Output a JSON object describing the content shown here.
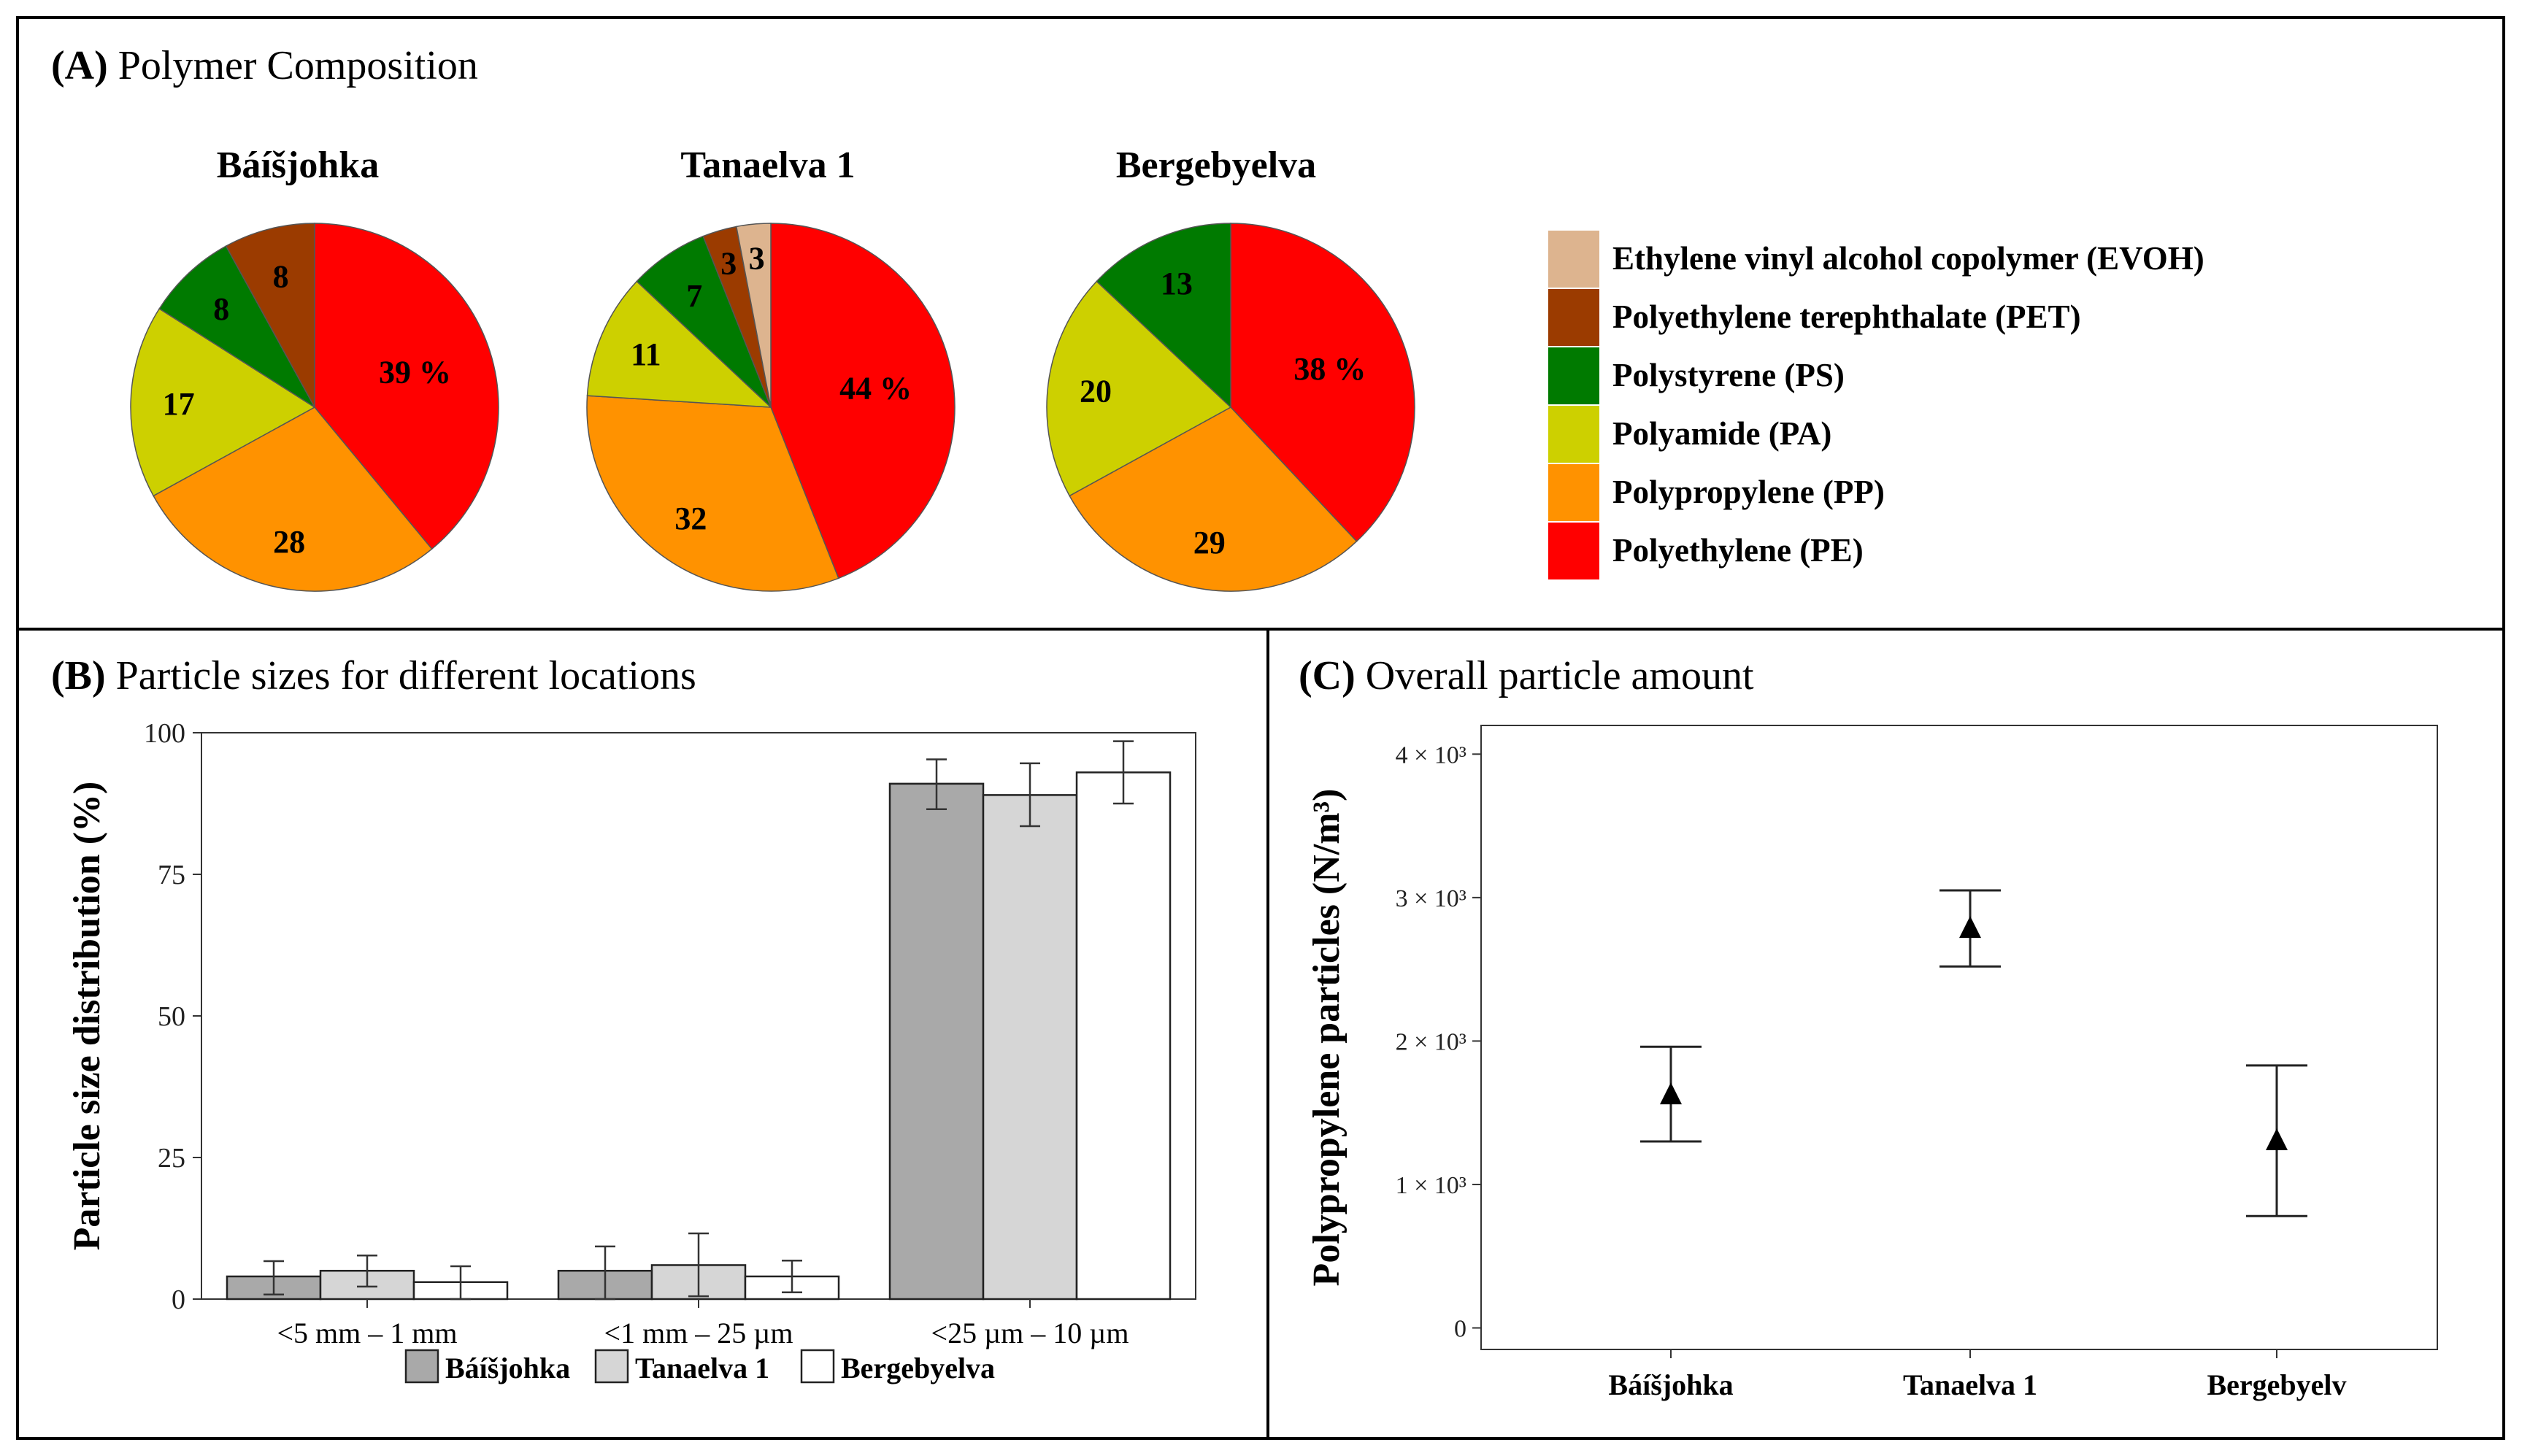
{
  "panel_a": {
    "letter": "(A)",
    "title": "Polymer Composition"
  },
  "panel_b": {
    "letter": "(B)",
    "title": "Particle sizes for different locations"
  },
  "panel_c": {
    "letter": "(C)",
    "title": "Overall particle amount"
  },
  "colors": {
    "PE": "#ff0000",
    "PP": "#ff9200",
    "PA": "#cdd000",
    "PS": "#007a00",
    "PET": "#9b3b00",
    "EVOH": "#ddb48f",
    "bar_baisjohka": "#a9a9a9",
    "bar_tanaelva": "#d6d6d6",
    "bar_bergebyelva": "#ffffff"
  },
  "chart_data": [
    {
      "type": "pie",
      "title": "Polymer Composition",
      "legend": [
        {
          "key": "EVOH",
          "label": "Ethylene vinyl alcohol copolymer (EVOH)"
        },
        {
          "key": "PET",
          "label": "Polyethylene terephthalate (PET)"
        },
        {
          "key": "PS",
          "label": "Polystyrene (PS)"
        },
        {
          "key": "PA",
          "label": "Polyamide (PA)"
        },
        {
          "key": "PP",
          "label": "Polypropylene (PP)"
        },
        {
          "key": "PE",
          "label": "Polyethylene (PE)"
        }
      ],
      "pies": [
        {
          "title": "Báíšjohka",
          "slices": [
            {
              "key": "PE",
              "value": 39,
              "label": "39 %"
            },
            {
              "key": "PP",
              "value": 28,
              "label": "28"
            },
            {
              "key": "PA",
              "value": 17,
              "label": "17"
            },
            {
              "key": "PS",
              "value": 8,
              "label": "8"
            },
            {
              "key": "PET",
              "value": 8,
              "label": "8"
            }
          ]
        },
        {
          "title": "Tanaelva 1",
          "slices": [
            {
              "key": "PE",
              "value": 44,
              "label": "44 %"
            },
            {
              "key": "PP",
              "value": 32,
              "label": "32"
            },
            {
              "key": "PA",
              "value": 11,
              "label": "11"
            },
            {
              "key": "PS",
              "value": 7,
              "label": "7"
            },
            {
              "key": "PET",
              "value": 3,
              "label": "3"
            },
            {
              "key": "EVOH",
              "value": 3,
              "label": "3"
            }
          ]
        },
        {
          "title": "Bergebyelva",
          "slices": [
            {
              "key": "PE",
              "value": 38,
              "label": "38 %"
            },
            {
              "key": "PP",
              "value": 29,
              "label": "29"
            },
            {
              "key": "PA",
              "value": 20,
              "label": "20"
            },
            {
              "key": "PS",
              "value": 13,
              "label": "13"
            }
          ]
        }
      ]
    },
    {
      "type": "bar",
      "title": "Particle sizes for different locations",
      "ylabel": "Particle size distribution (%)",
      "xlabel": "",
      "ylim": [
        0,
        100
      ],
      "yticks": [
        "0",
        "25",
        "50",
        "75",
        "100"
      ],
      "categories": [
        "<5 mm – 1 mm",
        "<1 mm – 25 µm",
        "<25 µm – 10 µm"
      ],
      "series": [
        {
          "name": "Báíšjohka",
          "values": [
            4,
            5,
            91
          ],
          "err_low": [
            0.8,
            0,
            86.5
          ],
          "err_high": [
            6.7,
            9.3,
            95.3
          ]
        },
        {
          "name": "Tanaelva 1",
          "values": [
            5,
            6,
            89
          ],
          "err_low": [
            2.2,
            0.5,
            83.5
          ],
          "err_high": [
            7.7,
            11.6,
            94.6
          ]
        },
        {
          "name": "Bergebyelva",
          "values": [
            3,
            4,
            93
          ],
          "err_low": [
            0,
            1.2,
            87.5
          ],
          "err_high": [
            5.8,
            6.8,
            98.5
          ]
        }
      ],
      "legend_position": "bottom"
    },
    {
      "type": "scatter",
      "title": "Overall particle amount",
      "ylabel": "Polypropylene particles (N/m³)",
      "xlabel": "",
      "ylim": [
        -150,
        4200
      ],
      "ytick_values": [
        0,
        1000,
        2000,
        3000,
        4000
      ],
      "ytick_labels": [
        "0",
        "1 × 10³",
        "2 × 10³",
        "3 × 10³",
        "4 × 10³"
      ],
      "categories": [
        "Báíšjohka",
        "Tanaelva 1",
        "Bergebyelv"
      ],
      "values": [
        1620,
        2780,
        1300
      ],
      "err_low": [
        1300,
        2520,
        780
      ],
      "err_high": [
        1960,
        3050,
        1830
      ]
    }
  ]
}
